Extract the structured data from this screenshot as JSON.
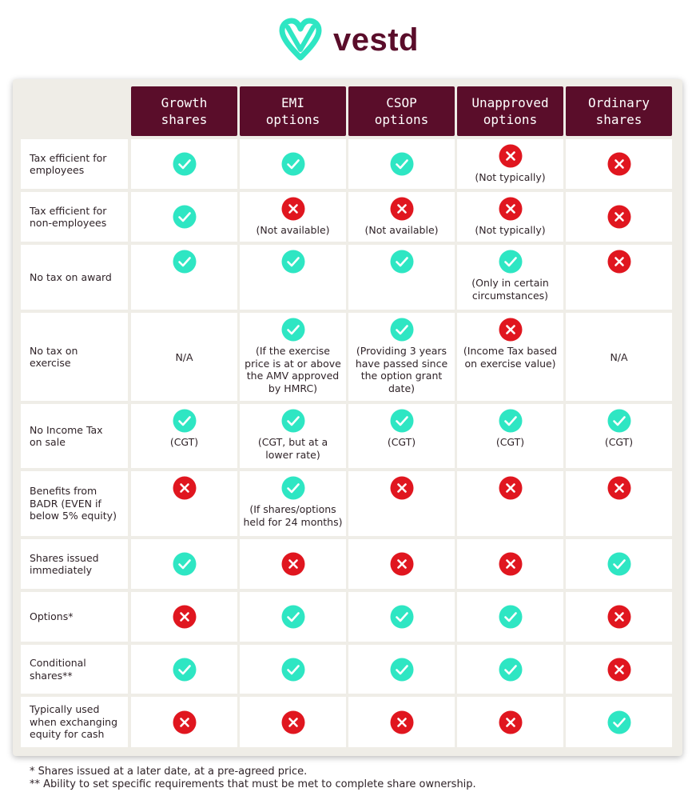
{
  "brand": {
    "name": "vestd"
  },
  "columns": [
    {
      "label": "Growth\nshares"
    },
    {
      "label": "EMI\noptions"
    },
    {
      "label": "CSOP\noptions"
    },
    {
      "label": "Unapproved\noptions"
    },
    {
      "label": "Ordinary\nshares"
    }
  ],
  "rows": [
    {
      "label": "Tax efficient for\nemployees",
      "cells": [
        {
          "mark": "check",
          "note": ""
        },
        {
          "mark": "check",
          "note": ""
        },
        {
          "mark": "check",
          "note": ""
        },
        {
          "mark": "cross",
          "note": "(Not typically)"
        },
        {
          "mark": "cross",
          "note": ""
        }
      ]
    },
    {
      "label": "Tax efficient for\nnon-employees",
      "cells": [
        {
          "mark": "check",
          "note": ""
        },
        {
          "mark": "cross",
          "note": "(Not available)"
        },
        {
          "mark": "cross",
          "note": "(Not available)"
        },
        {
          "mark": "cross",
          "note": "(Not typically)"
        },
        {
          "mark": "cross",
          "note": ""
        }
      ]
    },
    {
      "label": "No tax on award",
      "cells": [
        {
          "mark": "check",
          "note": ""
        },
        {
          "mark": "check",
          "note": ""
        },
        {
          "mark": "check",
          "note": ""
        },
        {
          "mark": "check",
          "note": "(Only in certain\ncircumstances)"
        },
        {
          "mark": "cross",
          "note": ""
        }
      ]
    },
    {
      "label": "No tax on\nexercise",
      "cells": [
        {
          "mark": "none",
          "note": "N/A"
        },
        {
          "mark": "check",
          "note": "(If the exercise\nprice is at or above\nthe AMV approved\nby HMRC)"
        },
        {
          "mark": "check",
          "note": "(Providing 3 years\nhave passed since\nthe option grant\ndate)"
        },
        {
          "mark": "cross",
          "note": "(Income Tax based\non exercise value)"
        },
        {
          "mark": "none",
          "note": "N/A"
        }
      ]
    },
    {
      "label": "No Income Tax\non sale",
      "cells": [
        {
          "mark": "check",
          "note": "(CGT)"
        },
        {
          "mark": "check",
          "note": "(CGT, but at a\nlower rate)"
        },
        {
          "mark": "check",
          "note": "(CGT)"
        },
        {
          "mark": "check",
          "note": "(CGT)"
        },
        {
          "mark": "check",
          "note": "(CGT)"
        }
      ]
    },
    {
      "label": "Benefits from\nBADR (EVEN if\nbelow 5% equity)",
      "cells": [
        {
          "mark": "cross",
          "note": ""
        },
        {
          "mark": "check",
          "note": "(If shares/options\nheld for 24 months)"
        },
        {
          "mark": "cross",
          "note": ""
        },
        {
          "mark": "cross",
          "note": ""
        },
        {
          "mark": "cross",
          "note": ""
        }
      ]
    },
    {
      "label": "Shares issued\nimmediately",
      "cells": [
        {
          "mark": "check",
          "note": ""
        },
        {
          "mark": "cross",
          "note": ""
        },
        {
          "mark": "cross",
          "note": ""
        },
        {
          "mark": "cross",
          "note": ""
        },
        {
          "mark": "check",
          "note": ""
        }
      ]
    },
    {
      "label": "Options*",
      "cells": [
        {
          "mark": "cross",
          "note": ""
        },
        {
          "mark": "check",
          "note": ""
        },
        {
          "mark": "check",
          "note": ""
        },
        {
          "mark": "check",
          "note": ""
        },
        {
          "mark": "cross",
          "note": ""
        }
      ]
    },
    {
      "label": "Conditional\nshares**",
      "cells": [
        {
          "mark": "check",
          "note": ""
        },
        {
          "mark": "check",
          "note": ""
        },
        {
          "mark": "check",
          "note": ""
        },
        {
          "mark": "check",
          "note": ""
        },
        {
          "mark": "cross",
          "note": ""
        }
      ]
    },
    {
      "label": "Typically used\nwhen exchanging\nequity for cash",
      "cells": [
        {
          "mark": "cross",
          "note": ""
        },
        {
          "mark": "cross",
          "note": ""
        },
        {
          "mark": "cross",
          "note": ""
        },
        {
          "mark": "cross",
          "note": ""
        },
        {
          "mark": "check",
          "note": ""
        }
      ]
    }
  ],
  "footnotes": [
    "* Shares issued at a later date, at a pre-agreed price.",
    "** Ability to set specific requirements that must be met to complete share ownership."
  ],
  "colors": {
    "header": "#5a0d2a",
    "check": "#2ee6c3",
    "cross": "#e0161f",
    "panel": "#efede7"
  }
}
